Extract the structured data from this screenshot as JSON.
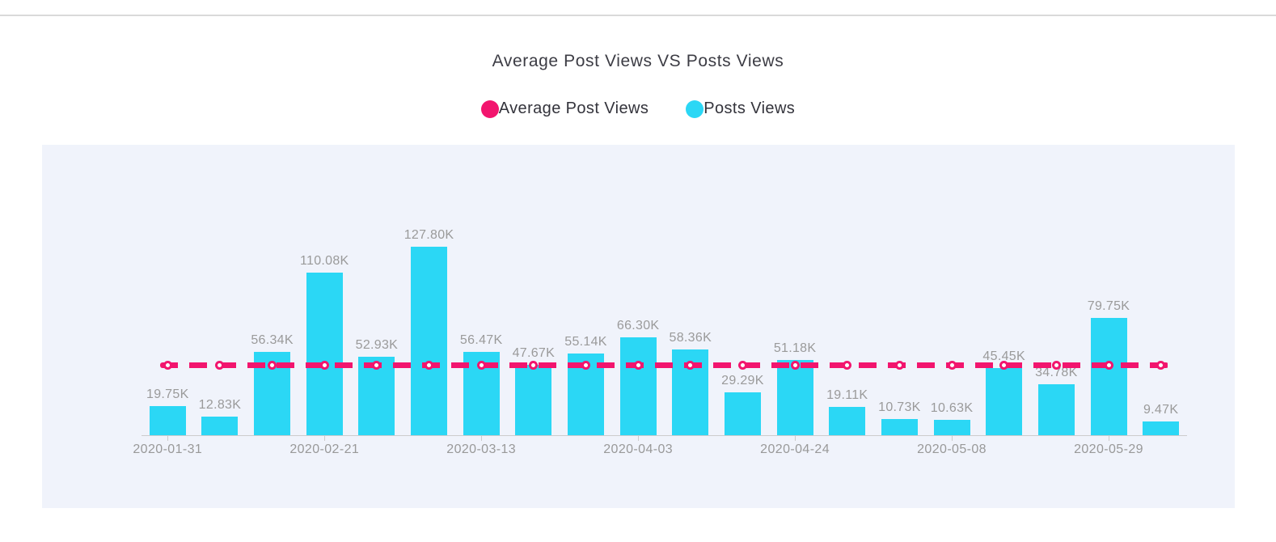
{
  "title": "Average Post Views VS Posts Views",
  "legend": {
    "items": [
      {
        "id": "average-post-views",
        "label": "Average Post Views",
        "color": "#f2156e"
      },
      {
        "id": "posts-views",
        "label": "Posts Views",
        "color": "#2bd7f5"
      }
    ]
  },
  "colors": {
    "bar": "#2bd7f5",
    "line": "#f2156e",
    "panel_background": "#f0f3fb",
    "axis": "#cccccc",
    "value_label": "#9a9a9a",
    "tick_label": "#999999",
    "title_text": "#3c3c44",
    "top_rule": "#d9d9d9"
  },
  "chart_data": {
    "type": "bar",
    "title": "Average Post Views VS Posts Views",
    "xlabel": "",
    "ylabel": "",
    "y_axis_visible": false,
    "grid": false,
    "legend_position": "top",
    "ylim_k": [
      0,
      140
    ],
    "x_tick_labels": [
      "2020-01-31",
      "2020-02-21",
      "2020-03-13",
      "2020-04-03",
      "2020-04-24",
      "2020-05-08",
      "2020-05-29"
    ],
    "x_tick_bar_indices": [
      0,
      3,
      6,
      9,
      12,
      15,
      18
    ],
    "series": [
      {
        "name": "Posts Views",
        "type": "bar",
        "color": "#2bd7f5",
        "values_k": [
          19.75,
          12.83,
          56.34,
          110.08,
          52.93,
          127.8,
          56.47,
          47.67,
          55.14,
          66.3,
          58.36,
          29.29,
          51.18,
          19.11,
          10.73,
          10.63,
          45.45,
          34.78,
          79.75,
          9.47
        ],
        "data_labels": [
          "19.75K",
          "12.83K",
          "56.34K",
          "110.08K",
          "52.93K",
          "127.80K",
          "56.47K",
          "47.67K",
          "55.14K",
          "66.30K",
          "58.36K",
          "29.29K",
          "51.18K",
          "19.11K",
          "10.73K",
          "10.63K",
          "45.45K",
          "34.78K",
          "79.75K",
          "9.47K"
        ],
        "bar_count": 20
      },
      {
        "name": "Average Post Views",
        "type": "line",
        "line_style": "dashed",
        "color": "#f2156e",
        "marker": "circle-open-white",
        "average_value_k": 47.7
      }
    ]
  }
}
